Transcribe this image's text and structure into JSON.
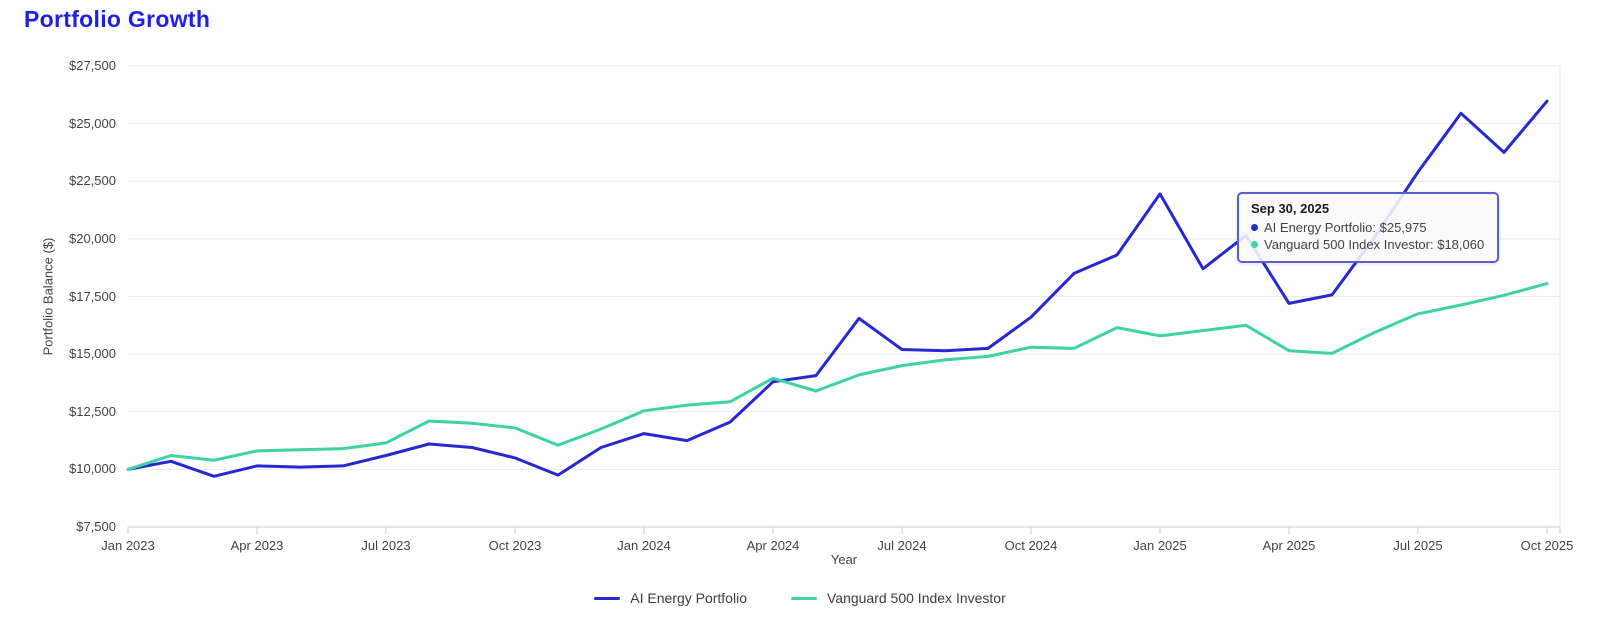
{
  "page": {
    "title": "Portfolio Growth"
  },
  "chart_data": {
    "type": "line",
    "title": "Portfolio Growth",
    "xlabel": "Year",
    "ylabel": "Portfolio Balance ($)",
    "ylim": [
      7500,
      27500
    ],
    "grid": true,
    "legend_position": "bottom",
    "x_tick_labels": [
      "Jan 2023",
      "Apr 2023",
      "Jul 2023",
      "Oct 2023",
      "Jan 2024",
      "Apr 2024",
      "Jul 2024",
      "Oct 2024",
      "Jan 2025",
      "Apr 2025",
      "Jul 2025",
      "Oct 2025"
    ],
    "y_ticks": [
      {
        "value": 7500,
        "label": "$7,500"
      },
      {
        "value": 10000,
        "label": "$10,000"
      },
      {
        "value": 12500,
        "label": "$12,500"
      },
      {
        "value": 15000,
        "label": "$15,000"
      },
      {
        "value": 17500,
        "label": "$17,500"
      },
      {
        "value": 20000,
        "label": "$20,000"
      },
      {
        "value": 22500,
        "label": "$22,500"
      },
      {
        "value": 25000,
        "label": "$25,000"
      },
      {
        "value": 27500,
        "label": "$27,500"
      }
    ],
    "x": [
      "Dec 2022",
      "Jan 2023",
      "Feb 2023",
      "Mar 2023",
      "Apr 2023",
      "May 2023",
      "Jun 2023",
      "Jul 2023",
      "Aug 2023",
      "Sep 2023",
      "Oct 2023",
      "Nov 2023",
      "Dec 2023",
      "Jan 2024",
      "Feb 2024",
      "Mar 2024",
      "Apr 2024",
      "May 2024",
      "Jun 2024",
      "Jul 2024",
      "Aug 2024",
      "Sep 2024",
      "Oct 2024",
      "Nov 2024",
      "Dec 2024",
      "Jan 2025",
      "Feb 2025",
      "Mar 2025",
      "Apr 2025",
      "May 2025",
      "Jun 2025",
      "Jul 2025",
      "Aug 2025",
      "Sep 2025"
    ],
    "series": [
      {
        "name": "AI Energy Portfolio",
        "color": "#2727d3",
        "values": [
          10000,
          10350,
          9700,
          10150,
          10100,
          10150,
          10600,
          11100,
          10950,
          10500,
          9750,
          10950,
          11550,
          11250,
          12050,
          13800,
          14070,
          16550,
          15200,
          15150,
          15250,
          16600,
          18500,
          19300,
          21950,
          18700,
          20150,
          17200,
          17570,
          20100,
          22900,
          25450,
          23750,
          25975
        ]
      },
      {
        "name": "Vanguard 500 Index Investor",
        "color": "#3ed3a3",
        "values": [
          10000,
          10600,
          10400,
          10800,
          10850,
          10900,
          11150,
          12100,
          12000,
          11800,
          11050,
          11750,
          12540,
          12790,
          12930,
          13950,
          13400,
          14100,
          14500,
          14750,
          14900,
          15300,
          15250,
          16150,
          15790,
          16020,
          16250,
          15150,
          15030,
          15950,
          16750,
          17130,
          17550,
          18060
        ]
      }
    ]
  },
  "tooltip": {
    "date": "Sep 30, 2025",
    "rows": [
      {
        "color": "#2727d3",
        "text": "AI Energy Portfolio: $25,975"
      },
      {
        "color": "#3ed3a3",
        "text": "Vanguard 500 Index Investor: $18,060"
      }
    ]
  },
  "legend": {
    "items": [
      {
        "label": "AI Energy Portfolio",
        "color": "#2727d3"
      },
      {
        "label": "Vanguard 500 Index Investor",
        "color": "#3ed3a3"
      }
    ]
  },
  "colors": {
    "grid": "#e9e9e9",
    "axis": "#c9c9c9",
    "tick_text": "#424242",
    "title": "#1f1fe8"
  }
}
